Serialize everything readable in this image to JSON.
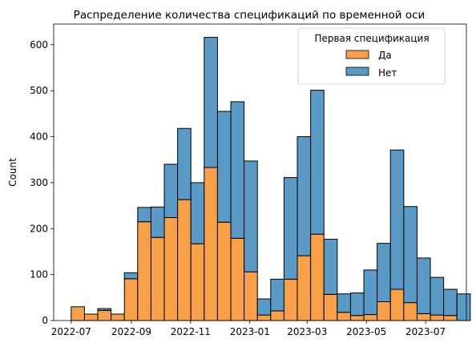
{
  "chart_data": {
    "type": "bar",
    "stacked": true,
    "title": "Распределение количества спецификаций по временной оси",
    "xlabel": "",
    "ylabel": "Count",
    "ylim": [
      0,
      645
    ],
    "xlim": [
      "2022-06-13",
      "2023-08-12"
    ],
    "x_ticks": [
      "2022-07",
      "2022-09",
      "2022-11",
      "2023-01",
      "2023-03",
      "2023-05",
      "2023-07"
    ],
    "y_ticks": [
      0,
      100,
      200,
      300,
      400,
      500,
      600
    ],
    "bin_start": "2022-07-01",
    "bin_width_days": 13.7,
    "grid": false,
    "legend": {
      "title": "Первая спецификация",
      "placement": "top-right"
    },
    "series": [
      {
        "name": "Да",
        "color": "#f8a048",
        "values": [
          30,
          14,
          22,
          14,
          91,
          215,
          181,
          224,
          263,
          167,
          333,
          214,
          179,
          106,
          12,
          21,
          90,
          141,
          188,
          57,
          18,
          11,
          13,
          41,
          68,
          39,
          15,
          12,
          11,
          0
        ]
      },
      {
        "name": "Нет",
        "color": "#5a9ac6",
        "values": [
          0,
          0,
          4,
          0,
          13,
          31,
          66,
          116,
          155,
          133,
          283,
          241,
          297,
          241,
          35,
          69,
          221,
          259,
          313,
          120,
          40,
          49,
          97,
          127,
          303,
          209,
          121,
          82,
          57,
          58
        ]
      }
    ]
  }
}
